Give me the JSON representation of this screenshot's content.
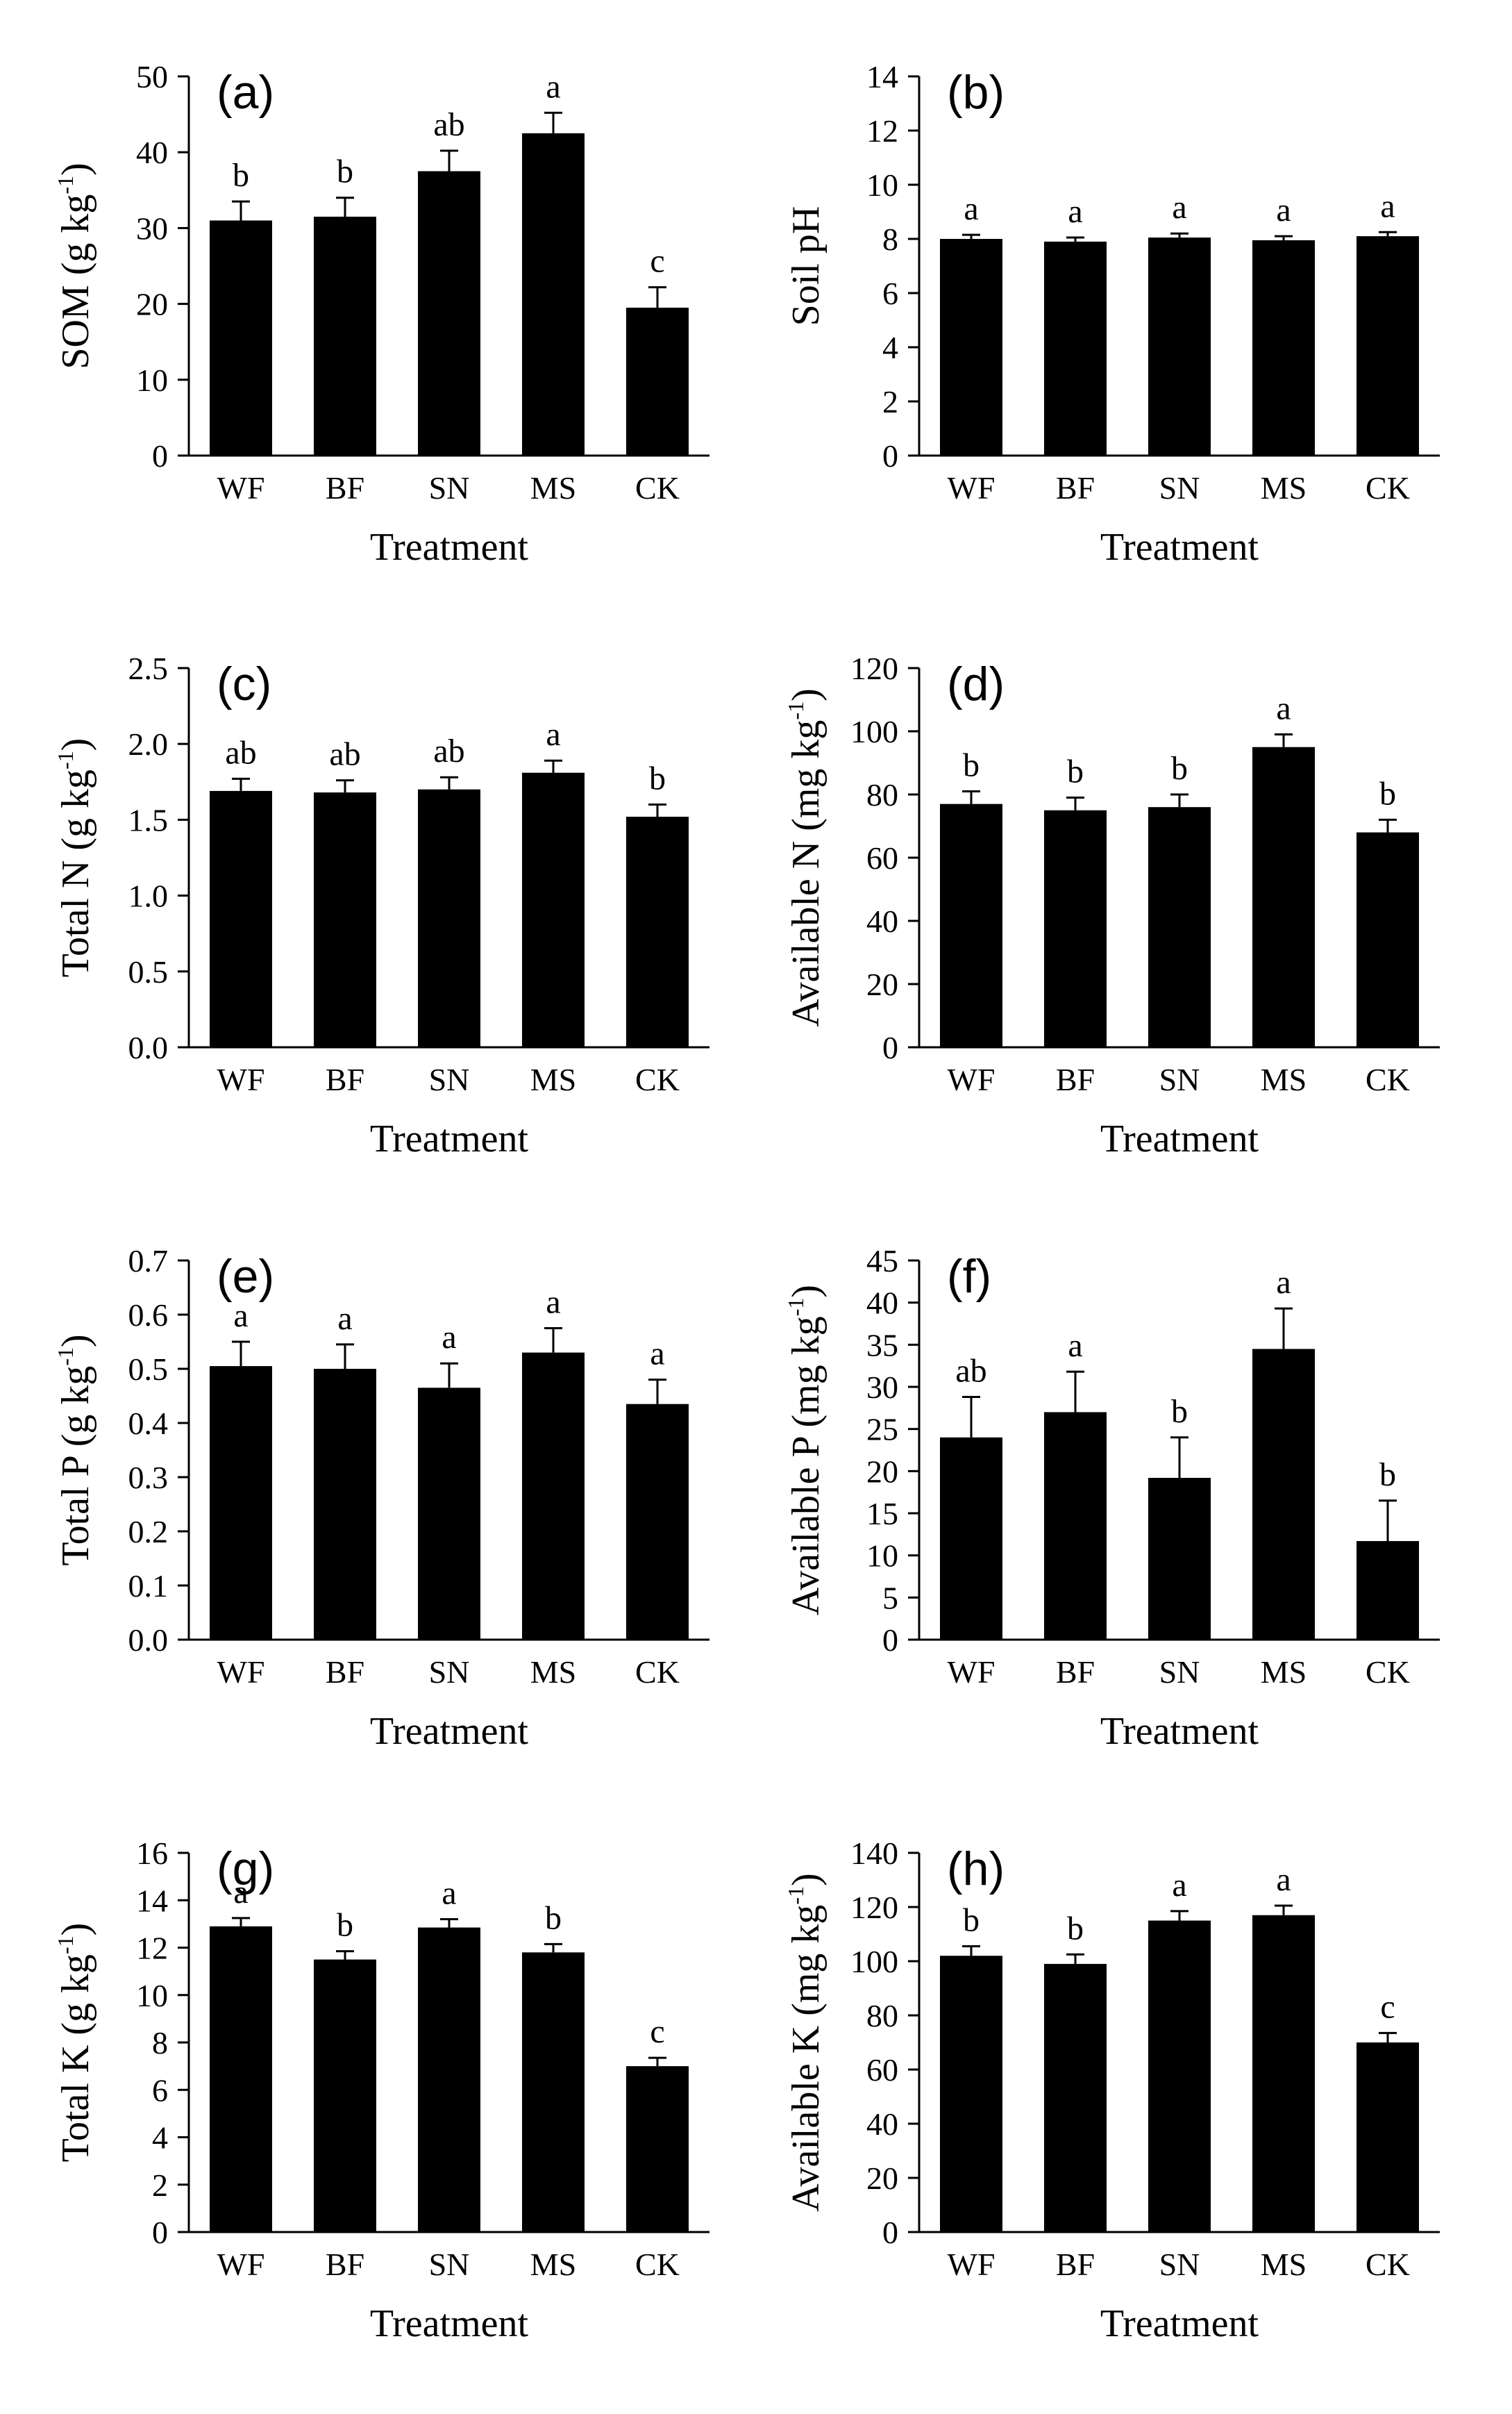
{
  "chart_data": [
    {
      "type": "bar",
      "panel": "(a)",
      "categories": [
        "WF",
        "BF",
        "SN",
        "MS",
        "CK"
      ],
      "values": [
        31,
        31.5,
        37.5,
        42.5,
        19.5
      ],
      "errors": [
        2.5,
        2.5,
        2.7,
        2.7,
        2.7
      ],
      "letters": [
        "b",
        "b",
        "ab",
        "a",
        "c"
      ],
      "xlabel": "Treatment",
      "ylabel": {
        "pre": "SOM (g kg",
        "sup": "-1",
        "post": ")"
      },
      "ylim": [
        0,
        50
      ],
      "ticks": [
        0,
        10,
        20,
        30,
        40,
        50
      ],
      "tick_labels": [
        "0",
        "10",
        "20",
        "30",
        "40",
        "50"
      ]
    },
    {
      "type": "bar",
      "panel": "(b)",
      "categories": [
        "WF",
        "BF",
        "SN",
        "MS",
        "CK"
      ],
      "values": [
        8.0,
        7.9,
        8.05,
        7.95,
        8.1
      ],
      "errors": [
        0.15,
        0.15,
        0.15,
        0.15,
        0.15
      ],
      "letters": [
        "a",
        "a",
        "a",
        "a",
        "a"
      ],
      "xlabel": "Treatment",
      "ylabel": {
        "pre": "Soil pH",
        "sup": "",
        "post": ""
      },
      "ylim": [
        0,
        14
      ],
      "ticks": [
        0,
        2,
        4,
        6,
        8,
        10,
        12,
        14
      ],
      "tick_labels": [
        "0",
        "2",
        "4",
        "6",
        "8",
        "10",
        "12",
        "14"
      ]
    },
    {
      "type": "bar",
      "panel": "(c)",
      "categories": [
        "WF",
        "BF",
        "SN",
        "MS",
        "CK"
      ],
      "values": [
        1.69,
        1.68,
        1.7,
        1.81,
        1.52
      ],
      "errors": [
        0.08,
        0.08,
        0.08,
        0.08,
        0.08
      ],
      "letters": [
        "ab",
        "ab",
        "ab",
        "a",
        "b"
      ],
      "xlabel": "Treatment",
      "ylabel": {
        "pre": "Total N (g kg",
        "sup": "-1",
        "post": ")"
      },
      "ylim": [
        0,
        2.5
      ],
      "ticks": [
        0,
        0.5,
        1.0,
        1.5,
        2.0,
        2.5
      ],
      "tick_labels": [
        "0.0",
        "0.5",
        "1.0",
        "1.5",
        "2.0",
        "2.5"
      ]
    },
    {
      "type": "bar",
      "panel": "(d)",
      "categories": [
        "WF",
        "BF",
        "SN",
        "MS",
        "CK"
      ],
      "values": [
        77,
        75,
        76,
        95,
        68
      ],
      "errors": [
        4,
        4,
        4,
        4,
        4
      ],
      "letters": [
        "b",
        "b",
        "b",
        "a",
        "b"
      ],
      "xlabel": "Treatment",
      "ylabel": {
        "pre": "Available N (mg kg",
        "sup": "-1",
        "post": ")"
      },
      "ylim": [
        0,
        120
      ],
      "ticks": [
        0,
        20,
        40,
        60,
        80,
        100,
        120
      ],
      "tick_labels": [
        "0",
        "20",
        "40",
        "60",
        "80",
        "100",
        "120"
      ]
    },
    {
      "type": "bar",
      "panel": "(e)",
      "categories": [
        "WF",
        "BF",
        "SN",
        "MS",
        "CK"
      ],
      "values": [
        0.505,
        0.5,
        0.465,
        0.53,
        0.435
      ],
      "errors": [
        0.045,
        0.045,
        0.045,
        0.045,
        0.045
      ],
      "letters": [
        "a",
        "a",
        "a",
        "a",
        "a"
      ],
      "xlabel": "Treatment",
      "ylabel": {
        "pre": "Total P (g kg",
        "sup": "-1",
        "post": ")"
      },
      "ylim": [
        0,
        0.7
      ],
      "ticks": [
        0,
        0.1,
        0.2,
        0.3,
        0.4,
        0.5,
        0.6,
        0.7
      ],
      "tick_labels": [
        "0.0",
        "0.1",
        "0.2",
        "0.3",
        "0.4",
        "0.5",
        "0.6",
        "0.7"
      ]
    },
    {
      "type": "bar",
      "panel": "(f)",
      "categories": [
        "WF",
        "BF",
        "SN",
        "MS",
        "CK"
      ],
      "values": [
        24,
        27,
        19.2,
        34.5,
        11.7
      ],
      "errors": [
        4.8,
        4.8,
        4.8,
        4.8,
        4.8
      ],
      "letters": [
        "ab",
        "a",
        "b",
        "a",
        "b"
      ],
      "xlabel": "Treatment",
      "ylabel": {
        "pre": "Available P (mg kg",
        "sup": "-1",
        "post": ")"
      },
      "ylim": [
        0,
        45
      ],
      "ticks": [
        0,
        5,
        10,
        15,
        20,
        25,
        30,
        35,
        40,
        45
      ],
      "tick_labels": [
        "0",
        "5",
        "10",
        "15",
        "20",
        "25",
        "30",
        "35",
        "40",
        "45"
      ]
    },
    {
      "type": "bar",
      "panel": "(g)",
      "categories": [
        "WF",
        "BF",
        "SN",
        "MS",
        "CK"
      ],
      "values": [
        12.9,
        11.5,
        12.85,
        11.8,
        7.0
      ],
      "errors": [
        0.35,
        0.35,
        0.35,
        0.35,
        0.35
      ],
      "letters": [
        "a",
        "b",
        "a",
        "b",
        "c"
      ],
      "xlabel": "Treatment",
      "ylabel": {
        "pre": "Total K (g kg",
        "sup": "-1",
        "post": ")"
      },
      "ylim": [
        0,
        16
      ],
      "ticks": [
        0,
        2,
        4,
        6,
        8,
        10,
        12,
        14,
        16
      ],
      "tick_labels": [
        "0",
        "2",
        "4",
        "6",
        "8",
        "10",
        "12",
        "14",
        "16"
      ]
    },
    {
      "type": "bar",
      "panel": "(h)",
      "categories": [
        "WF",
        "BF",
        "SN",
        "MS",
        "CK"
      ],
      "values": [
        102,
        99,
        115,
        117,
        70
      ],
      "errors": [
        3.5,
        3.5,
        3.5,
        3.5,
        3.5
      ],
      "letters": [
        "b",
        "b",
        "a",
        "a",
        "c"
      ],
      "xlabel": "Treatment",
      "ylabel": {
        "pre": "Available K (mg kg",
        "sup": "-1",
        "post": ")"
      },
      "ylim": [
        0,
        140
      ],
      "ticks": [
        0,
        20,
        40,
        60,
        80,
        100,
        120,
        140
      ],
      "tick_labels": [
        "0",
        "20",
        "40",
        "60",
        "80",
        "100",
        "120",
        "140"
      ]
    }
  ]
}
